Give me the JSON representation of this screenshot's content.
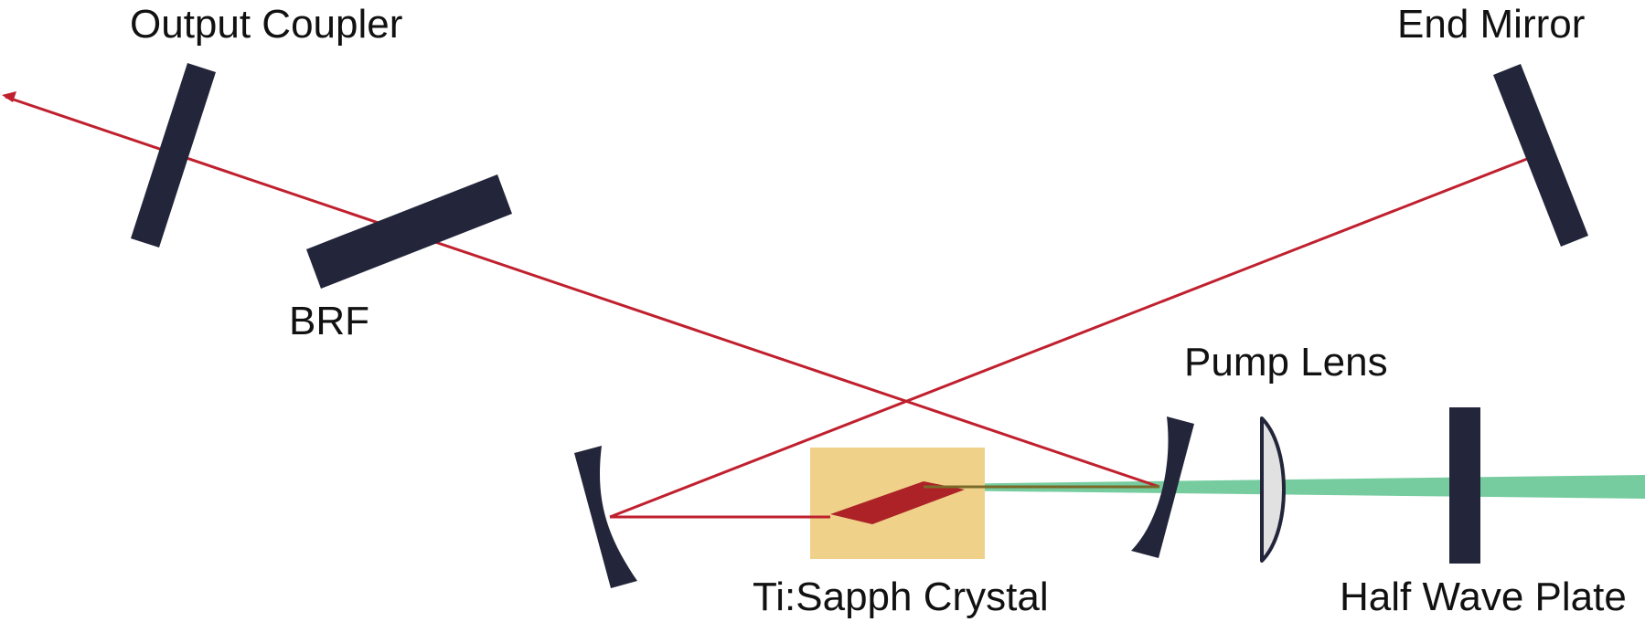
{
  "labels": {
    "output_coupler": "Output Coupler",
    "end_mirror": "End Mirror",
    "brf": "BRF",
    "pump_lens": "Pump Lens",
    "crystal": "Ti:Sapph Crystal",
    "half_wave_plate": "Half Wave Plate"
  },
  "colors": {
    "optic": "#23263a",
    "laser_beam": "#c0202e",
    "pump_beam": "#76cc9f",
    "crystal": "#efd18a",
    "crystal_gain": "#ac2226",
    "lens_fill": "#e1e1e1",
    "text": "#111111"
  },
  "icons": {
    "output_arrow": "arrow-head-icon"
  }
}
